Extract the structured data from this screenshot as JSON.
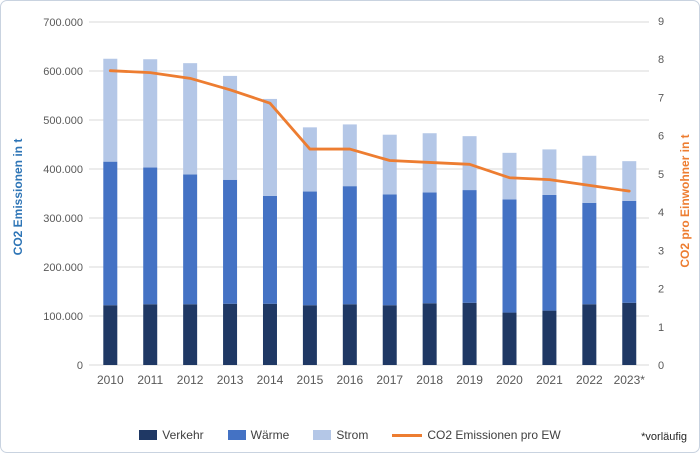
{
  "chart": {
    "footnote": "*vorläufig"
  },
  "chart_data": {
    "type": "bar",
    "subtype": "stacked-bars-with-line-overlay",
    "title": "",
    "categories": [
      "2010",
      "2011",
      "2012",
      "2013",
      "2014",
      "2015",
      "2016",
      "2017",
      "2018",
      "2019",
      "2020",
      "2021",
      "2022",
      "2023*"
    ],
    "series": [
      {
        "name": "Verkehr",
        "type": "bar",
        "axis": "left",
        "color": "#1F3864",
        "values": [
          122000,
          124000,
          124000,
          125000,
          125000,
          122000,
          124000,
          122000,
          126000,
          127000,
          107000,
          111000,
          124000,
          127000
        ]
      },
      {
        "name": "Wärme",
        "type": "bar",
        "axis": "left",
        "color": "#4472C4",
        "values": [
          293000,
          279000,
          265000,
          253000,
          220000,
          232000,
          241000,
          226000,
          226000,
          230000,
          231000,
          236000,
          207000,
          208000
        ]
      },
      {
        "name": "Strom",
        "type": "bar",
        "axis": "left",
        "color": "#B4C7E7",
        "values": [
          210000,
          221000,
          227000,
          212000,
          198000,
          131000,
          126000,
          122000,
          121000,
          110000,
          95000,
          93000,
          96000,
          81000
        ]
      },
      {
        "name": "CO2 Emissionen pro EW",
        "type": "line",
        "axis": "right",
        "color": "#ED7D31",
        "values": [
          7.7,
          7.65,
          7.5,
          7.2,
          6.85,
          5.65,
          5.65,
          5.35,
          5.3,
          5.25,
          4.9,
          4.85,
          4.7,
          4.55
        ]
      }
    ],
    "stacked_totals": [
      625000,
      624000,
      616000,
      590000,
      543000,
      485000,
      491000,
      470000,
      473000,
      467000,
      433000,
      440000,
      427000,
      416000
    ],
    "left_axis": {
      "title": "CO2 Emissionen in t",
      "min": 0,
      "max": 700000,
      "step": 100000,
      "tick_labels": [
        "0",
        "100.000",
        "200.000",
        "300.000",
        "400.000",
        "500.000",
        "600.000",
        "700.000"
      ]
    },
    "right_axis": {
      "title": "CO2  pro Einwohner in t",
      "min": 0,
      "max": 9,
      "step": 1,
      "tick_labels": [
        "0",
        "1",
        "2",
        "3",
        "4",
        "5",
        "6",
        "7",
        "8",
        "9"
      ]
    },
    "legend_position": "bottom",
    "grid": true,
    "gridline_color": "#D9D9D9"
  }
}
